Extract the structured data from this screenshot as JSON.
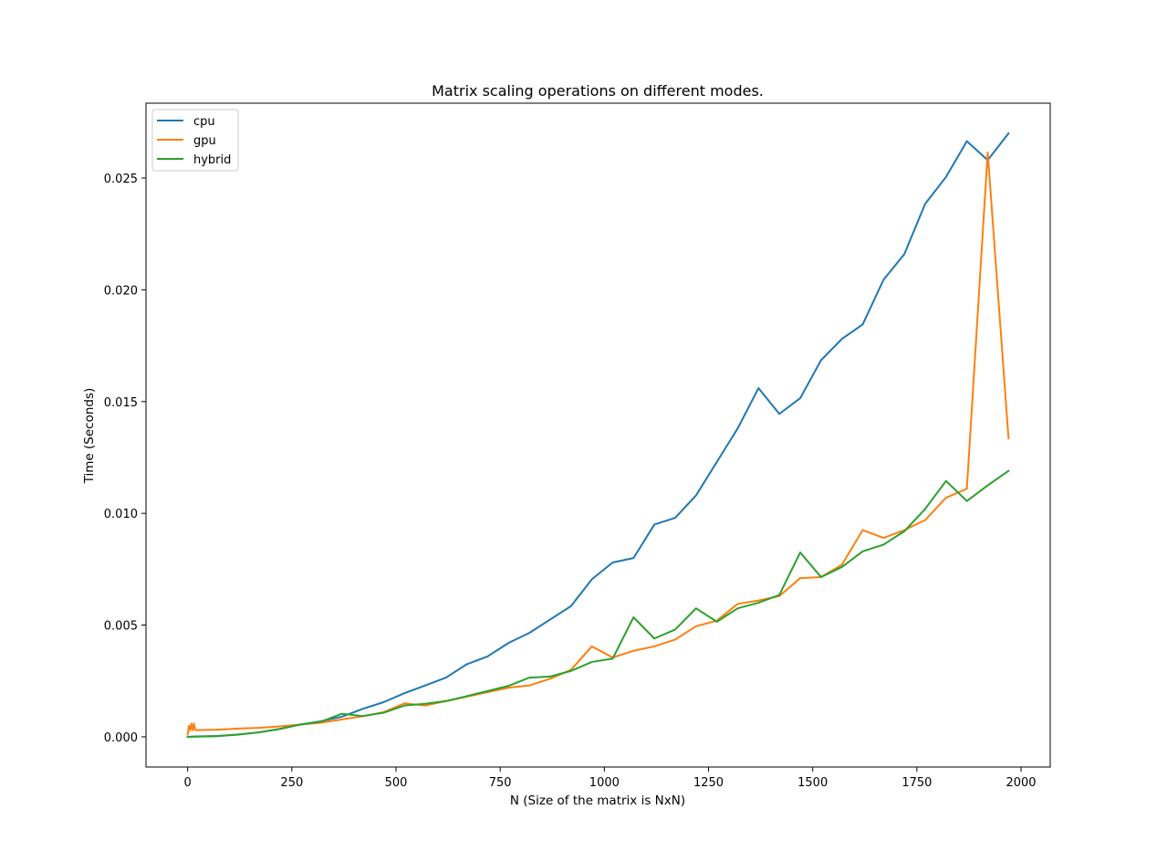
{
  "chart_data": {
    "type": "line",
    "title": "Matrix scaling operations on different modes.",
    "xlabel": "N (Size of the matrix is NxN)",
    "ylabel": "Time (Seconds)",
    "xlim": [
      -100,
      2070
    ],
    "ylim": [
      -0.00135,
      0.02835
    ],
    "xticks": [
      0,
      250,
      500,
      750,
      1000,
      1250,
      1500,
      1750,
      2000
    ],
    "xtick_labels": [
      "0",
      "250",
      "500",
      "750",
      "1000",
      "1250",
      "1500",
      "1750",
      "2000"
    ],
    "yticks": [
      0.0,
      0.005,
      0.01,
      0.015,
      0.02,
      0.025
    ],
    "ytick_labels": [
      "0.000",
      "0.005",
      "0.010",
      "0.015",
      "0.020",
      "0.025"
    ],
    "grid": false,
    "legend_position": "top-left",
    "series": [
      {
        "name": "cpu",
        "color": "#1f77b4",
        "points": [
          [
            0,
            0.0
          ],
          [
            20,
            2e-05
          ],
          [
            70,
            4e-05
          ],
          [
            120,
            0.0001
          ],
          [
            170,
            0.0002
          ],
          [
            220,
            0.00035
          ],
          [
            270,
            0.00055
          ],
          [
            320,
            0.0007
          ],
          [
            370,
            0.0009
          ],
          [
            420,
            0.00125
          ],
          [
            470,
            0.00155
          ],
          [
            520,
            0.00195
          ],
          [
            570,
            0.0023
          ],
          [
            620,
            0.00265
          ],
          [
            670,
            0.00325
          ],
          [
            720,
            0.0036
          ],
          [
            770,
            0.0042
          ],
          [
            820,
            0.00465
          ],
          [
            870,
            0.00525
          ],
          [
            920,
            0.00585
          ],
          [
            970,
            0.00705
          ],
          [
            1020,
            0.0078
          ],
          [
            1070,
            0.008
          ],
          [
            1120,
            0.0095
          ],
          [
            1170,
            0.0098
          ],
          [
            1220,
            0.0108
          ],
          [
            1270,
            0.0123
          ],
          [
            1320,
            0.0138
          ],
          [
            1370,
            0.0156
          ],
          [
            1420,
            0.01445
          ],
          [
            1470,
            0.01515
          ],
          [
            1520,
            0.01685
          ],
          [
            1570,
            0.0178
          ],
          [
            1620,
            0.01845
          ],
          [
            1670,
            0.02045
          ],
          [
            1720,
            0.0216
          ],
          [
            1770,
            0.02385
          ],
          [
            1820,
            0.02505
          ],
          [
            1870,
            0.02665
          ],
          [
            1920,
            0.0258
          ],
          [
            1970,
            0.027
          ]
        ]
      },
      {
        "name": "gpu",
        "color": "#ff7f0e",
        "points": [
          [
            0,
            0.0001
          ],
          [
            3,
            0.0005
          ],
          [
            6,
            0.0003
          ],
          [
            9,
            0.0006
          ],
          [
            12,
            0.0003
          ],
          [
            15,
            0.0006
          ],
          [
            18,
            0.0003
          ],
          [
            70,
            0.00032
          ],
          [
            120,
            0.00037
          ],
          [
            170,
            0.0004
          ],
          [
            220,
            0.00047
          ],
          [
            270,
            0.00055
          ],
          [
            320,
            0.00063
          ],
          [
            370,
            0.00078
          ],
          [
            420,
            0.00092
          ],
          [
            470,
            0.0011
          ],
          [
            520,
            0.0015
          ],
          [
            570,
            0.0014
          ],
          [
            620,
            0.0016
          ],
          [
            670,
            0.0018
          ],
          [
            720,
            0.002
          ],
          [
            770,
            0.0022
          ],
          [
            820,
            0.0023
          ],
          [
            870,
            0.0026
          ],
          [
            920,
            0.003
          ],
          [
            970,
            0.00405
          ],
          [
            1020,
            0.00355
          ],
          [
            1070,
            0.00385
          ],
          [
            1120,
            0.00405
          ],
          [
            1170,
            0.00435
          ],
          [
            1220,
            0.00495
          ],
          [
            1270,
            0.0052
          ],
          [
            1320,
            0.00595
          ],
          [
            1370,
            0.0061
          ],
          [
            1420,
            0.0063
          ],
          [
            1470,
            0.0071
          ],
          [
            1520,
            0.00715
          ],
          [
            1570,
            0.0077
          ],
          [
            1620,
            0.00925
          ],
          [
            1670,
            0.0089
          ],
          [
            1720,
            0.00925
          ],
          [
            1770,
            0.0097
          ],
          [
            1820,
            0.0107
          ],
          [
            1870,
            0.0111
          ],
          [
            1920,
            0.02615
          ],
          [
            1970,
            0.01335
          ]
        ]
      },
      {
        "name": "hybrid",
        "color": "#2ca02c",
        "points": [
          [
            0,
            0.0
          ],
          [
            20,
            1e-05
          ],
          [
            70,
            3e-05
          ],
          [
            120,
            0.0001
          ],
          [
            170,
            0.0002
          ],
          [
            220,
            0.00035
          ],
          [
            270,
            0.00055
          ],
          [
            320,
            0.00068
          ],
          [
            370,
            0.00103
          ],
          [
            420,
            0.00093
          ],
          [
            470,
            0.00108
          ],
          [
            520,
            0.0014
          ],
          [
            570,
            0.00148
          ],
          [
            620,
            0.0016
          ],
          [
            670,
            0.00182
          ],
          [
            720,
            0.00205
          ],
          [
            770,
            0.00228
          ],
          [
            820,
            0.00265
          ],
          [
            870,
            0.0027
          ],
          [
            920,
            0.00295
          ],
          [
            970,
            0.00335
          ],
          [
            1020,
            0.0035
          ],
          [
            1070,
            0.00535
          ],
          [
            1120,
            0.0044
          ],
          [
            1170,
            0.0048
          ],
          [
            1220,
            0.00575
          ],
          [
            1270,
            0.00515
          ],
          [
            1320,
            0.00575
          ],
          [
            1370,
            0.006
          ],
          [
            1420,
            0.00635
          ],
          [
            1470,
            0.00825
          ],
          [
            1520,
            0.00715
          ],
          [
            1570,
            0.0076
          ],
          [
            1620,
            0.0083
          ],
          [
            1670,
            0.0086
          ],
          [
            1720,
            0.0092
          ],
          [
            1770,
            0.0102
          ],
          [
            1820,
            0.01145
          ],
          [
            1870,
            0.01055
          ],
          [
            1920,
            0.01125
          ],
          [
            1970,
            0.0119
          ]
        ]
      }
    ]
  }
}
